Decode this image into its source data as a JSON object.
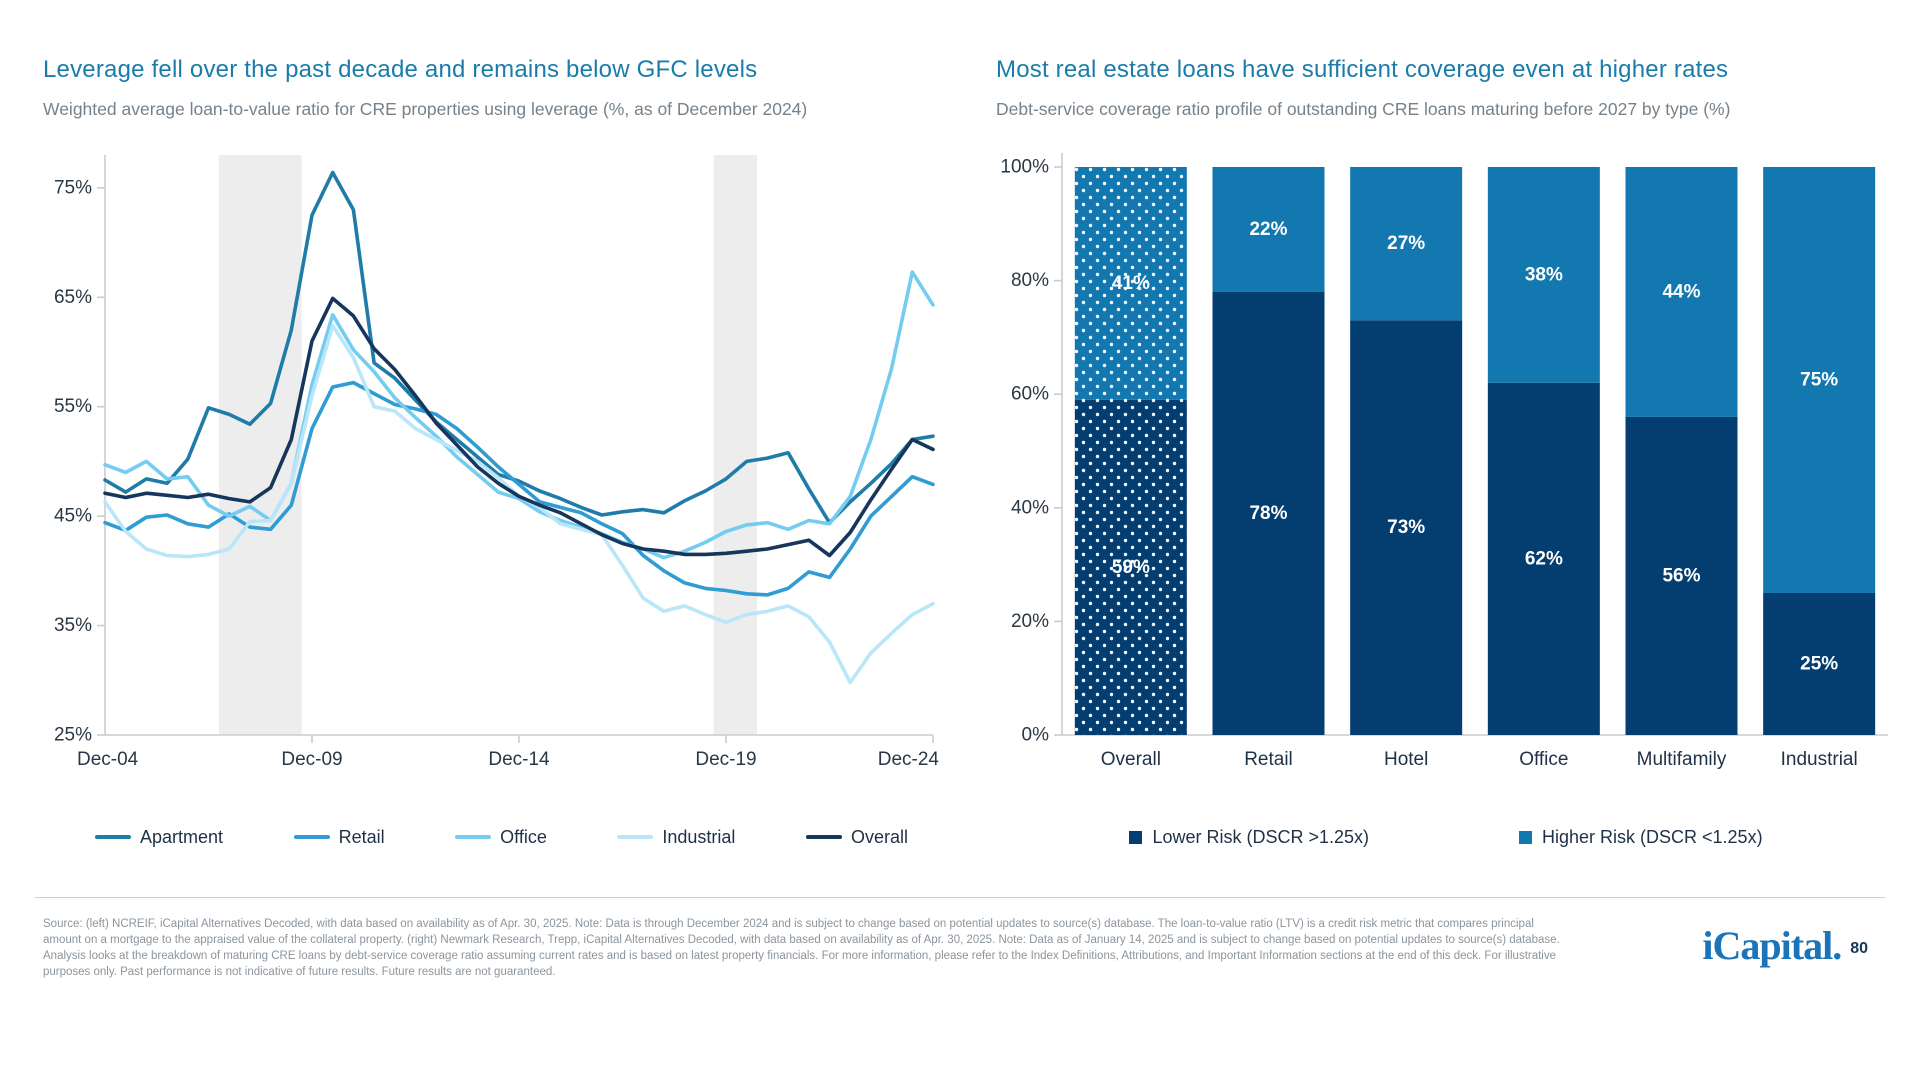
{
  "page": {
    "background": "#ffffff",
    "divider_color": "#ccd0d4",
    "logo_text": "iCapital",
    "logo_dot": ".",
    "page_number": "80"
  },
  "left_chart": {
    "title": "Leverage fell over the past decade and remains below GFC levels",
    "subtitle": "Weighted average loan-to-value ratio for CRE properties using leverage (%, as of December 2024)"
  },
  "right_chart": {
    "title": "Most real estate loans have sufficient coverage even at higher rates",
    "subtitle": "Debt-service coverage ratio profile of outstanding CRE loans maturing before 2027 by type (%)"
  },
  "chart_data": [
    {
      "type": "line",
      "title": "Leverage fell over the past decade and remains below GFC levels",
      "x_unit": "years since Dec-2004 (semi-annual points)",
      "x_range": [
        0,
        20
      ],
      "x_step": 0.5,
      "x_tick_positions": [
        0,
        5,
        10,
        15,
        20
      ],
      "x_tick_labels": [
        "Dec-04",
        "Dec-09",
        "Dec-14",
        "Dec-19",
        "Dec-24"
      ],
      "y_ticks": [
        25,
        35,
        45,
        55,
        65,
        75
      ],
      "y_tick_suffix": "%",
      "ylim": [
        25,
        78
      ],
      "grid": false,
      "legend_position": "bottom",
      "band_color": "#ededed",
      "axis_color": "#c9ccd0",
      "tick_label_color": "#2a3744",
      "recession_bands": [
        {
          "from": 2.75,
          "to": 4.75
        },
        {
          "from": 14.7,
          "to": 15.75
        }
      ],
      "series": [
        {
          "name": "Apartment",
          "color": "#1f7ca8",
          "values": [
            48.3,
            47.2,
            48.4,
            48.0,
            50.2,
            54.9,
            54.3,
            53.4,
            55.3,
            62.0,
            72.5,
            76.4,
            73.0,
            59.0,
            57.6,
            55.6,
            53.6,
            52.0,
            50.4,
            48.8,
            48.2,
            47.3,
            46.6,
            45.8,
            45.1,
            45.4,
            45.6,
            45.3,
            46.4,
            47.3,
            48.4,
            50.0,
            50.3,
            50.8,
            47.5,
            44.4,
            46.3,
            48.0,
            49.8,
            52.0,
            52.3
          ]
        },
        {
          "name": "Retail",
          "color": "#2f9cd3",
          "values": [
            44.4,
            43.7,
            44.9,
            45.1,
            44.3,
            44.0,
            45.2,
            44.0,
            43.8,
            46.0,
            53.0,
            56.8,
            57.2,
            56.2,
            55.2,
            54.8,
            54.3,
            53.0,
            51.3,
            49.5,
            47.9,
            46.3,
            45.8,
            45.3,
            44.3,
            43.4,
            41.4,
            40.0,
            38.9,
            38.4,
            38.2,
            37.9,
            37.8,
            38.4,
            39.9,
            39.4,
            42.0,
            45.0,
            46.8,
            48.6,
            47.9
          ]
        },
        {
          "name": "Office",
          "color": "#74ccf1",
          "values": [
            49.7,
            49.0,
            50.0,
            48.4,
            48.6,
            46.0,
            45.0,
            45.9,
            44.6,
            48.0,
            57.0,
            63.4,
            60.2,
            58.2,
            55.8,
            54.0,
            52.3,
            50.4,
            48.8,
            47.2,
            46.6,
            45.4,
            44.6,
            44.0,
            43.4,
            42.6,
            42.0,
            41.2,
            41.8,
            42.6,
            43.6,
            44.2,
            44.4,
            43.8,
            44.6,
            44.3,
            46.8,
            52.0,
            58.5,
            67.3,
            64.3
          ]
        },
        {
          "name": "Industrial",
          "color": "#b9e6f8",
          "values": [
            46.3,
            43.6,
            42.0,
            41.4,
            41.3,
            41.5,
            42.0,
            44.5,
            44.6,
            48.0,
            56.0,
            62.4,
            59.5,
            55.0,
            54.6,
            53.0,
            52.0,
            51.0,
            50.0,
            48.5,
            46.8,
            45.8,
            44.3,
            43.8,
            43.3,
            40.5,
            37.5,
            36.3,
            36.8,
            36.0,
            35.3,
            36.0,
            36.3,
            36.8,
            35.8,
            33.5,
            29.8,
            32.5,
            34.3,
            36.0,
            37.0
          ]
        },
        {
          "name": "Overall",
          "color": "#16365c",
          "values": [
            47.1,
            46.7,
            47.1,
            46.9,
            46.7,
            47.0,
            46.6,
            46.3,
            47.6,
            52.0,
            61.0,
            64.9,
            63.3,
            60.3,
            58.4,
            56.0,
            53.5,
            51.5,
            49.5,
            48.0,
            46.8,
            46.0,
            45.3,
            44.3,
            43.3,
            42.5,
            42.0,
            41.8,
            41.5,
            41.5,
            41.6,
            41.8,
            42.0,
            42.4,
            42.8,
            41.4,
            43.5,
            46.5,
            49.3,
            52.0,
            51.1
          ]
        }
      ]
    },
    {
      "type": "bar",
      "stacked": true,
      "title": "Most real estate loans have sufficient coverage even at higher rates",
      "categories": [
        "Overall",
        "Retail",
        "Hotel",
        "Office",
        "Multifamily",
        "Industrial"
      ],
      "series": [
        {
          "name": "Lower Risk (DSCR >1.25x)",
          "color": "#043d70",
          "values": [
            59,
            78,
            73,
            62,
            56,
            25
          ]
        },
        {
          "name": "Higher Risk (DSCR <1.25x)",
          "color": "#1478b0",
          "values": [
            41,
            22,
            27,
            38,
            44,
            75
          ]
        }
      ],
      "value_suffix": "%",
      "value_label_color": "#ffffff",
      "y_ticks": [
        0,
        20,
        40,
        60,
        80,
        100
      ],
      "y_tick_suffix": "%",
      "ylim": [
        0,
        100
      ],
      "grid": false,
      "legend_position": "bottom",
      "axis_color": "#c9ccd0",
      "tick_label_color": "#2a3744",
      "category_label_color": "#1f3146",
      "pattern_overlay_category": "Overall"
    }
  ],
  "footer": {
    "lines": [
      "Source: (left) NCREIF, iCapital Alternatives Decoded, with data based on availability as of Apr. 30, 2025. Note: Data is through December 2024 and is subject to change based on potential updates to source(s) database. The loan-to-value ratio (LTV) is a credit risk metric that compares principal",
      "amount on a mortgage to the appraised value of the collateral property. (right) Newmark Research, Trepp, iCapital Alternatives Decoded, with data based on availability as of Apr. 30, 2025. Note: Data as of January 14, 2025 and is subject to change based on potential updates to source(s) database.",
      "Analysis looks at the breakdown of maturing CRE loans by debt-service coverage ratio assuming current rates and is based on latest property financials. For more information, please refer to the Index Definitions, Attributions, and Important Information sections at the end of this deck. For illustrative",
      "purposes only. Past performance is not indicative of future results. Future results are not guaranteed."
    ]
  }
}
